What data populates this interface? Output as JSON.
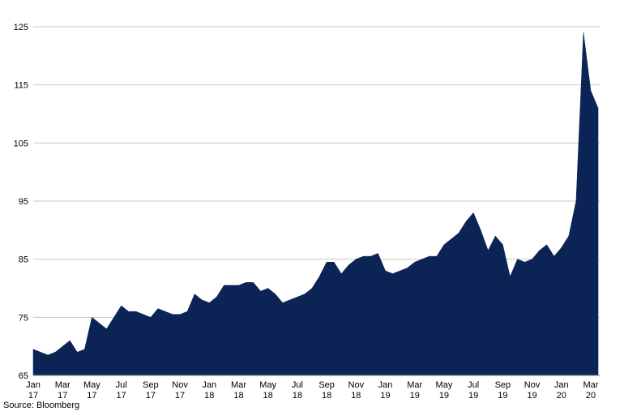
{
  "chart_data": {
    "type": "area",
    "source": "Source: Bloomberg",
    "color": "#0c2355",
    "grid": true,
    "ylim": [
      65,
      125
    ],
    "yticks": [
      65,
      75,
      85,
      95,
      105,
      115,
      125
    ],
    "categories": [
      "Jan 17",
      null,
      null,
      null,
      "Mar 17",
      null,
      null,
      null,
      "May 17",
      null,
      null,
      null,
      "Jul 17",
      null,
      null,
      null,
      "Sep 17",
      null,
      null,
      null,
      "Nov 17",
      null,
      null,
      null,
      "Jan 18",
      null,
      null,
      null,
      "Mar 18",
      null,
      null,
      null,
      "May 18",
      null,
      null,
      null,
      "Jul 18",
      null,
      null,
      null,
      "Sep 18",
      null,
      null,
      null,
      "Nov 18",
      null,
      null,
      null,
      "Jan 19",
      null,
      null,
      null,
      "Mar 19",
      null,
      null,
      null,
      "May 19",
      null,
      null,
      null,
      "Jul 19",
      null,
      null,
      null,
      "Sep 19",
      null,
      null,
      null,
      "Nov 19",
      null,
      null,
      null,
      "Jan 20",
      null,
      null,
      null,
      "Mar 20",
      null
    ],
    "values": [
      69.5,
      69,
      68.5,
      69,
      70,
      71,
      69,
      69.5,
      75,
      74,
      73,
      75,
      77,
      76,
      76,
      75.5,
      75,
      76.5,
      76,
      75.5,
      75.5,
      76,
      79,
      78,
      77.5,
      78.5,
      80.5,
      80.5,
      80.5,
      81,
      81,
      79.5,
      80,
      79,
      77.5,
      78,
      78.5,
      79,
      80,
      82,
      84.5,
      84.5,
      82.5,
      84,
      85,
      85.5,
      85.5,
      86,
      83,
      82.5,
      83,
      83.5,
      84.5,
      85,
      85.5,
      85.5,
      87.5,
      88.5,
      89.5,
      91.5,
      93,
      90,
      86.5,
      89,
      87.5,
      82,
      85,
      84.5,
      85,
      86.5,
      87.5,
      85.5,
      87,
      89,
      95,
      124,
      114,
      111
    ]
  }
}
